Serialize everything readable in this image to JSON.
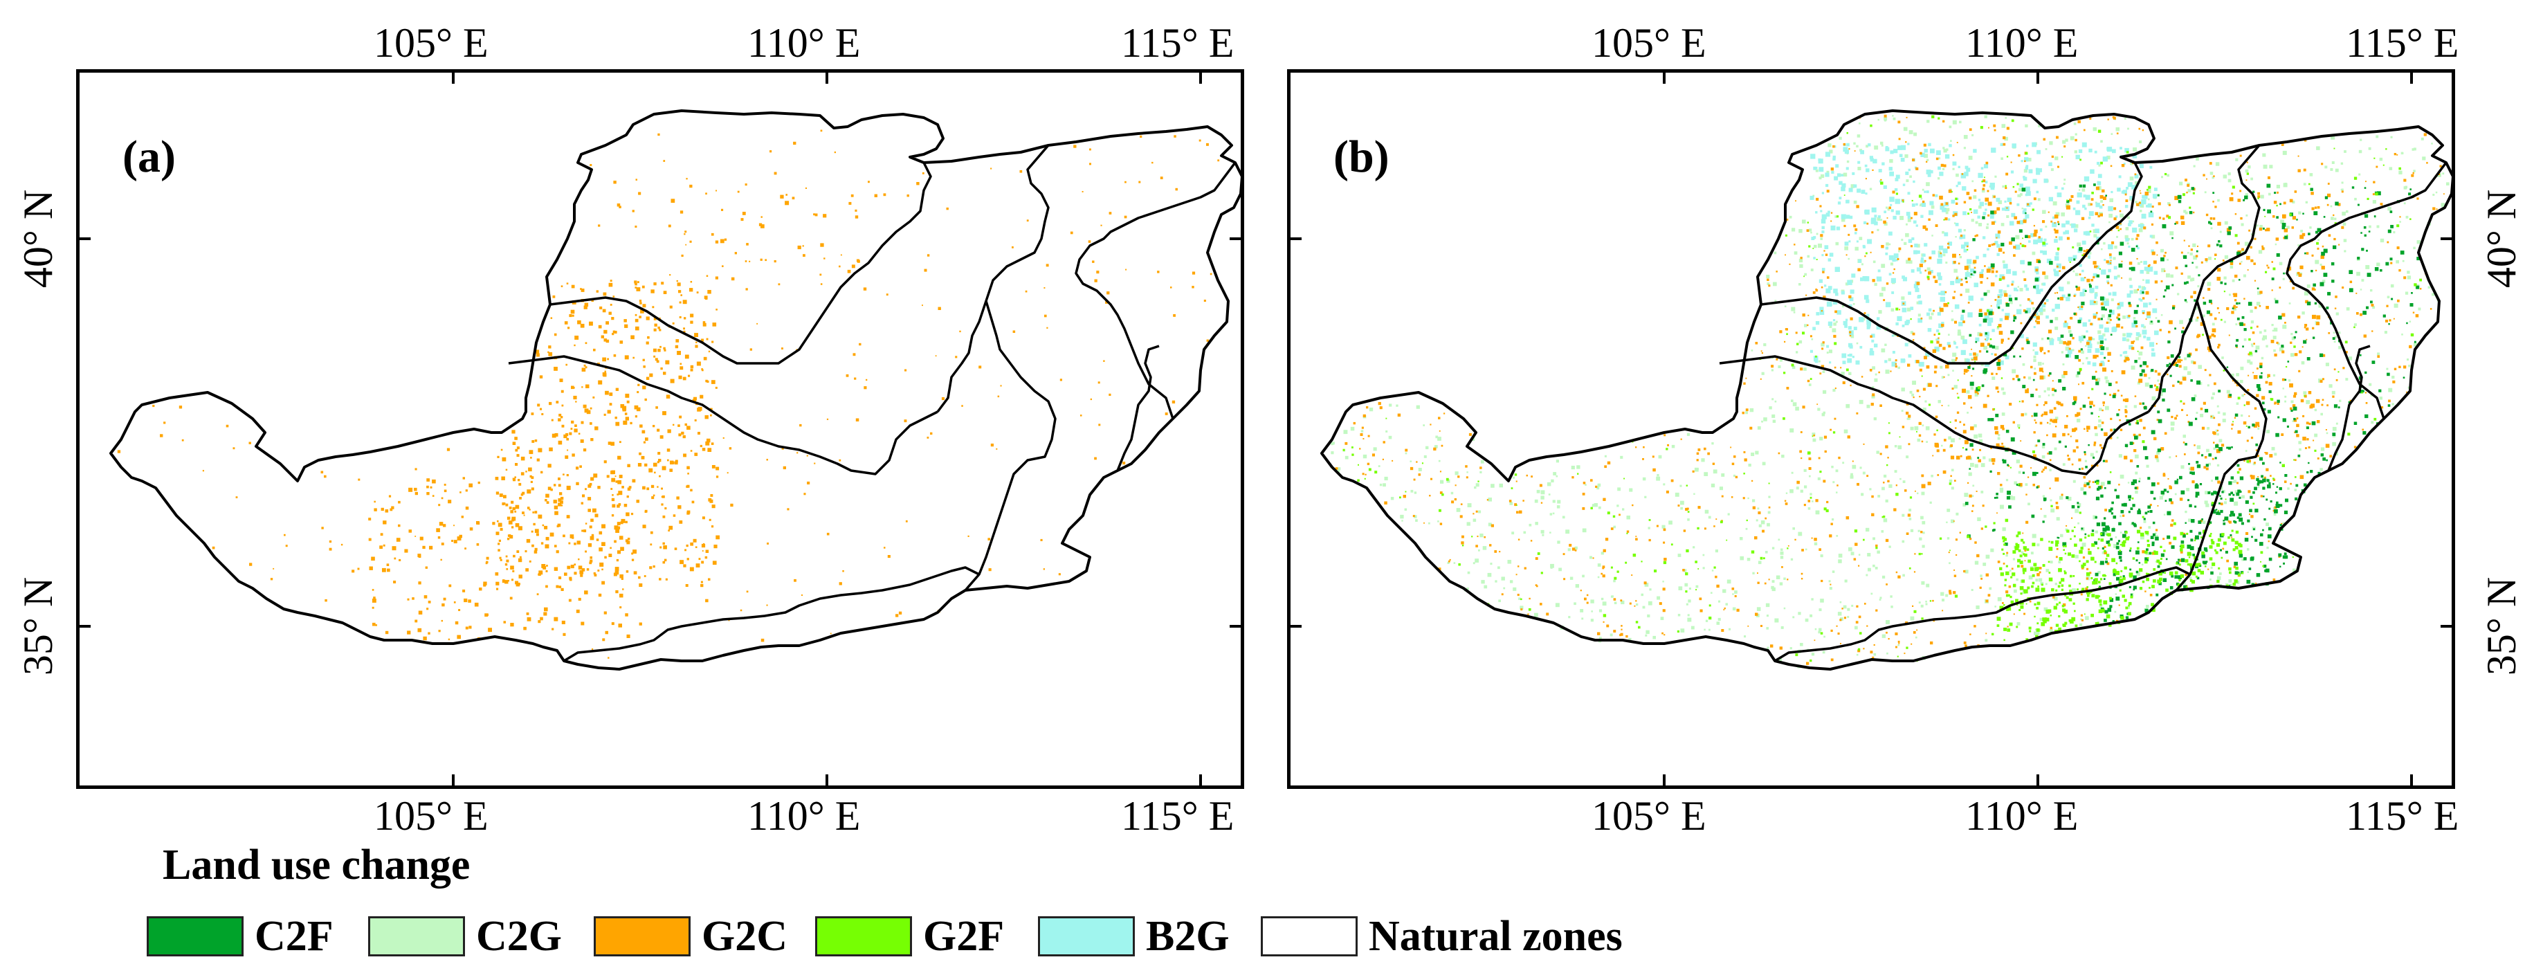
{
  "panels": [
    {
      "id": "a",
      "label": "(a)"
    },
    {
      "id": "b",
      "label": "(b)"
    }
  ],
  "axes": {
    "lon_labels": [
      "105° E",
      "110° E",
      "115° E"
    ],
    "lat_labels": [
      "40° N",
      "35° N"
    ]
  },
  "legend": {
    "title": "Land use change",
    "items": [
      {
        "label": "C2F",
        "color": "#00a32a"
      },
      {
        "label": "C2G",
        "color": "#c2f8c2"
      },
      {
        "label": "G2C",
        "color": "#ffa500"
      },
      {
        "label": "G2F",
        "color": "#76ff03"
      },
      {
        "label": "B2G",
        "color": "#a0f5ee"
      },
      {
        "label": "Natural zones",
        "color": "#ffffff"
      }
    ]
  }
}
